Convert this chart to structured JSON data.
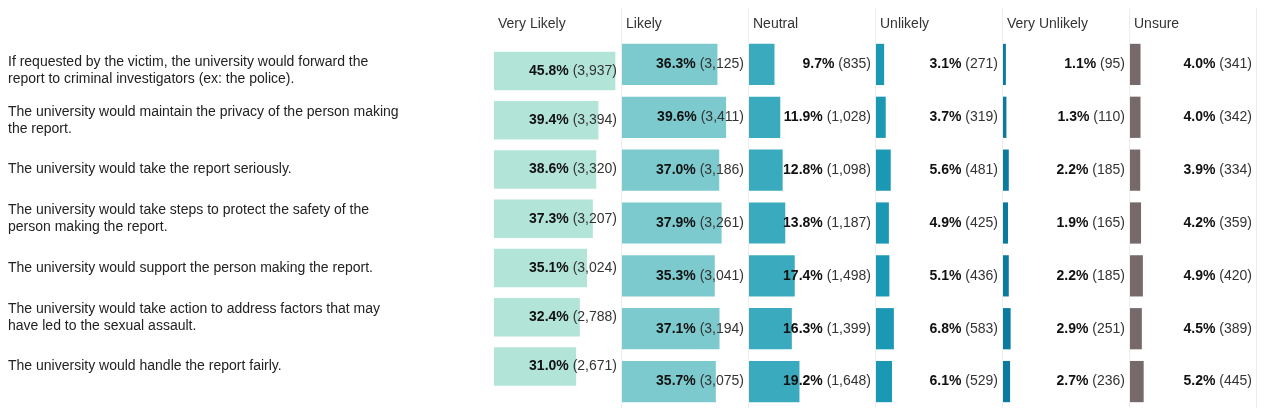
{
  "chart_data": [
    {
      "type": "bar",
      "orientation": "horizontal",
      "title": "Very Likely",
      "tick_labels": "y",
      "color": "#b2e5d8",
      "categories": [
        "If requested by the victim, the university would forward the report to criminal investigators (ex: the police).",
        "The university would maintain the privacy of the person making the report.",
        "The university would take the report seriously.",
        "The university would take steps to protect the safety of the person making the report.",
        "The university would support the person making the report.",
        "The university would take action to address factors that may have led to the sexual assault.",
        "The university would handle the report fairly."
      ],
      "values": [
        45.8,
        39.4,
        38.6,
        37.3,
        35.1,
        32.4,
        31.0
      ],
      "value_labels": [
        "45.8% (3,937)",
        "39.4% (3,394)",
        "38.6% (3,320)",
        "37.3% (3,207)",
        "35.1% (3,024)",
        "32.4% (2,788)",
        "31.0% (2,671)"
      ]
    },
    {
      "type": "bar",
      "orientation": "horizontal",
      "title": "Likely",
      "tick_labels": false,
      "color": "#7ccace",
      "categories": [
        null,
        null,
        null,
        null,
        null,
        null,
        null
      ],
      "values": [
        36.3,
        39.6,
        37.0,
        37.9,
        35.3,
        37.1,
        35.7
      ],
      "value_labels": [
        "36.3% (3,125)",
        "39.6% (3,411)",
        "37.0% (3,186)",
        "37.9% (3,261)",
        "35.3% (3,041)",
        "37.1% (3,194)",
        "35.7% (3,075)"
      ]
    },
    {
      "type": "bar",
      "orientation": "horizontal",
      "title": "Neutral",
      "tick_labels": false,
      "color": "#3aabbe",
      "categories": [
        null,
        null,
        null,
        null,
        null,
        null,
        null
      ],
      "values": [
        9.7,
        11.9,
        12.8,
        13.8,
        17.4,
        16.3,
        19.2
      ],
      "value_labels": [
        "9.7% (835)",
        "11.9% (1,028)",
        "12.8% (1,098)",
        "13.8% (1,187)",
        "17.4% (1,498)",
        "16.3% (1,399)",
        "19.2% (1,648)"
      ]
    },
    {
      "type": "bar",
      "orientation": "horizontal",
      "title": "Unlikely",
      "tick_labels": false,
      "color": "#1a98b4",
      "categories": [
        null,
        null,
        null,
        null,
        null,
        null,
        null
      ],
      "values": [
        3.1,
        3.7,
        5.6,
        4.9,
        5.1,
        6.8,
        6.1
      ],
      "value_labels": [
        "3.1% (271)",
        "3.7% (319)",
        "5.6% (481)",
        "4.9% (425)",
        "5.1% (436)",
        "6.8% (583)",
        "6.1% (529)"
      ]
    },
    {
      "type": "bar",
      "orientation": "horizontal",
      "title": "Very Unlikely",
      "tick_labels": false,
      "color": "#0b7aa0",
      "categories": [
        null,
        null,
        null,
        null,
        null,
        null,
        null
      ],
      "values": [
        1.1,
        1.3,
        2.2,
        1.9,
        2.2,
        2.9,
        2.7
      ],
      "value_labels": [
        "1.1% (95)",
        "1.3% (110)",
        "2.2% (185)",
        "1.9% (165)",
        "2.2% (185)",
        "2.9% (251)",
        "2.7% (236)"
      ]
    },
    {
      "type": "bar",
      "orientation": "horizontal",
      "title": "Unsure",
      "tick_labels": false,
      "color": "#756969",
      "categories": [
        null,
        null,
        null,
        null,
        null,
        null,
        null
      ],
      "values": [
        4.0,
        4.0,
        3.9,
        4.2,
        4.9,
        4.5,
        5.2
      ],
      "value_labels": [
        "4.0% (341)",
        "4.0% (342)",
        "3.9% (334)",
        "4.2% (359)",
        "4.9% (420)",
        "4.5% (389)",
        "5.2% (445)"
      ]
    }
  ]
}
